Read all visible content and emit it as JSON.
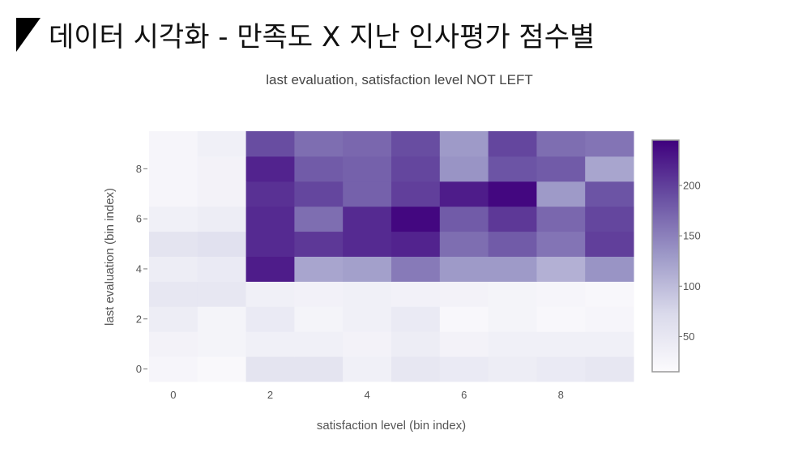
{
  "slide": {
    "title": "데이터 시각화 - 만족도 X 지난 인사평가 점수별"
  },
  "chart_data": {
    "type": "heatmap",
    "title": "last evaluation, satisfaction level NOT LEFT",
    "xlabel": "satisfaction level (bin index)",
    "ylabel": "last evaluation (bin index)",
    "x": [
      0,
      1,
      2,
      3,
      4,
      5,
      6,
      7,
      8,
      9
    ],
    "y": [
      0,
      1,
      2,
      3,
      4,
      5,
      6,
      7,
      8,
      9
    ],
    "x_ticks": [
      "0",
      "2",
      "4",
      "6",
      "8"
    ],
    "y_ticks": [
      "0",
      "2",
      "4",
      "6",
      "8"
    ],
    "colorscale": "Purples",
    "colorbar_ticks": [
      "50",
      "100",
      "150",
      "200"
    ],
    "zlim": [
      15,
      245
    ],
    "z": [
      [
        25,
        20,
        55,
        55,
        35,
        50,
        45,
        40,
        45,
        50
      ],
      [
        30,
        28,
        35,
        35,
        30,
        40,
        30,
        35,
        35,
        35
      ],
      [
        40,
        28,
        45,
        28,
        35,
        45,
        22,
        28,
        22,
        25
      ],
      [
        50,
        50,
        35,
        32,
        35,
        32,
        30,
        28,
        25,
        22
      ],
      [
        40,
        45,
        225,
        120,
        125,
        155,
        130,
        130,
        110,
        135
      ],
      [
        55,
        60,
        215,
        205,
        215,
        220,
        165,
        180,
        160,
        200
      ],
      [
        35,
        40,
        215,
        165,
        215,
        240,
        180,
        205,
        170,
        195
      ],
      [
        25,
        30,
        210,
        195,
        175,
        200,
        225,
        240,
        130,
        185
      ],
      [
        25,
        30,
        220,
        180,
        175,
        195,
        135,
        185,
        180,
        120
      ],
      [
        25,
        35,
        190,
        165,
        170,
        190,
        130,
        195,
        165,
        160
      ]
    ]
  }
}
